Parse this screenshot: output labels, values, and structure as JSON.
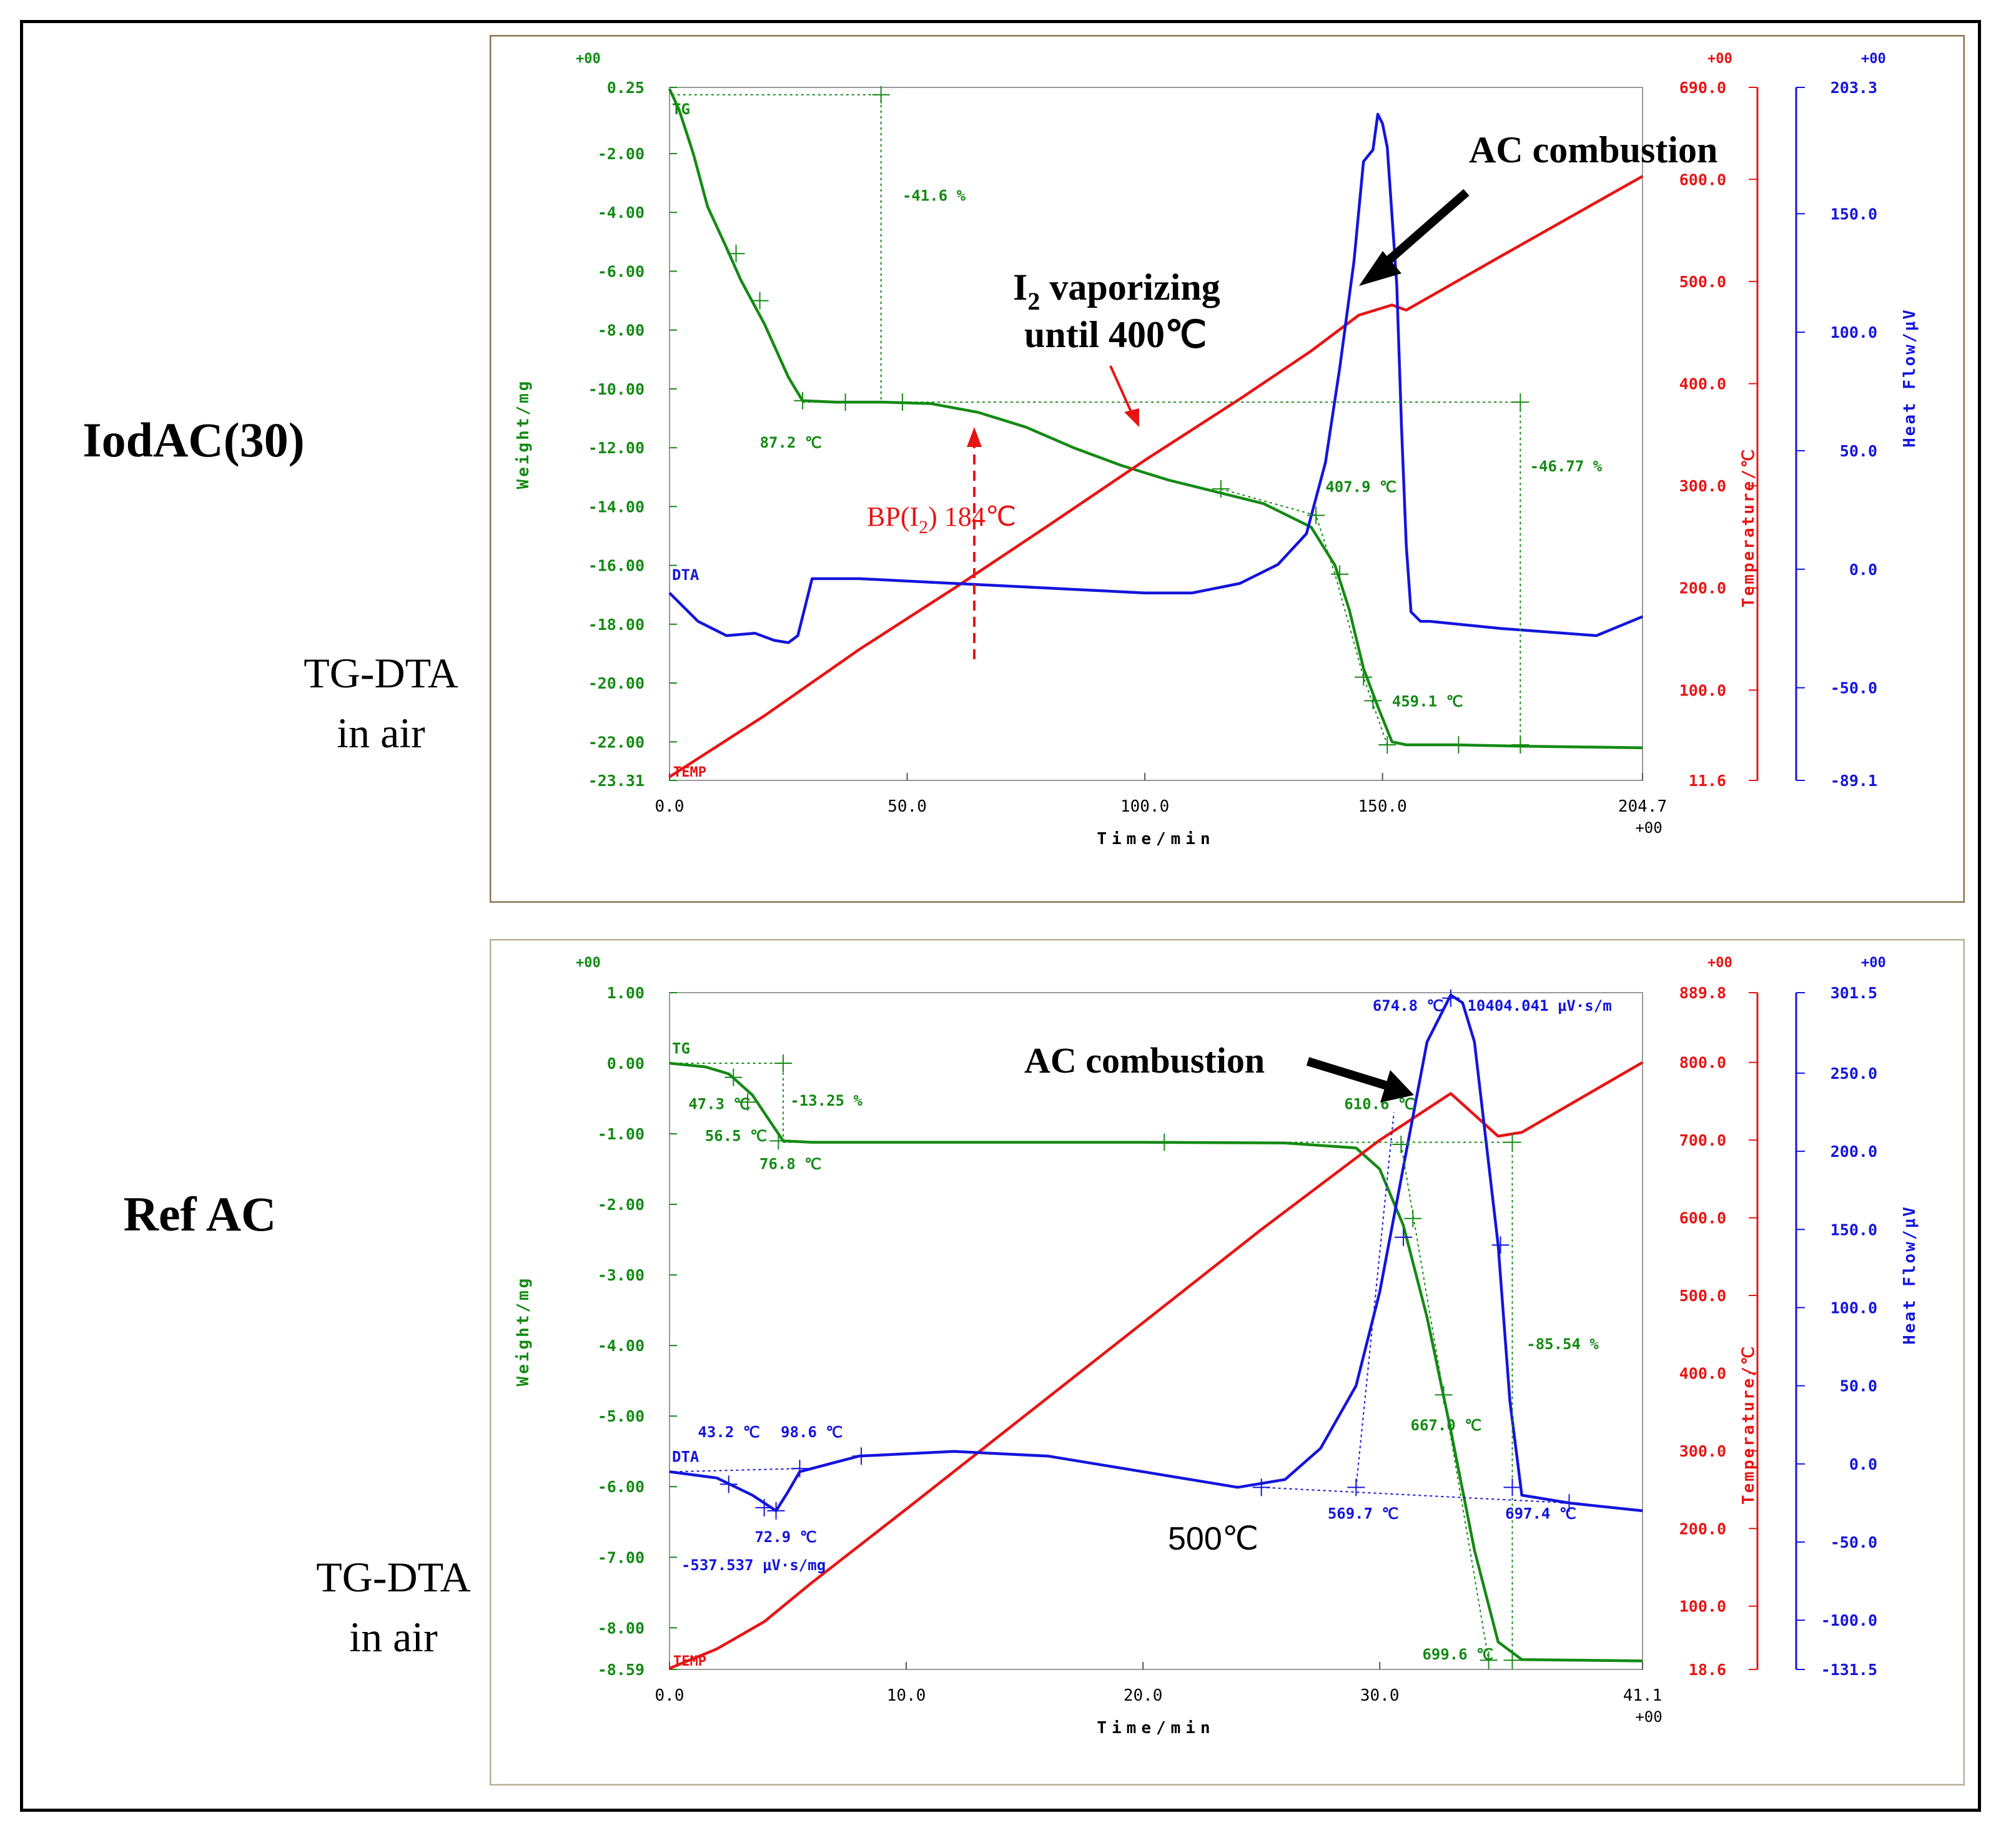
{
  "figure": {
    "top_label": "IodAC(30)",
    "bottom_label": "Ref AC",
    "method_line1": "TG-DTA",
    "method_line2": "in air",
    "colors": {
      "tg": "#148a14",
      "dta": "#1414dc",
      "temp": "#e81414",
      "frame_top": "#8a7550",
      "frame_bottom": "#b9b09a"
    }
  },
  "chart_data": [
    {
      "type": "line",
      "name": "IodAC(30)",
      "xlabel": "Time/min",
      "ylabel_left": "Weight/mg",
      "ylabel_temp": "Temperature/℃",
      "ylabel_heat": "Heat Flow/μV",
      "xlim": [
        0,
        204.7
      ],
      "ylim_weight": [
        -23.31,
        0.25
      ],
      "ylim_temp": [
        11.6,
        690.0
      ],
      "ylim_heat": [
        -89.1,
        203.3
      ],
      "x_ticks": [
        "0.0",
        "50.0",
        "100.0",
        "150.0",
        "204.7"
      ],
      "x_tick_vals": [
        0,
        50,
        100,
        150,
        204.7
      ],
      "x_exp": "+00",
      "weight_ticks": [
        "0.25",
        "-2.00",
        "-4.00",
        "-6.00",
        "-8.00",
        "-10.00",
        "-12.00",
        "-14.00",
        "-16.00",
        "-18.00",
        "-20.00",
        "-22.00",
        "-23.31"
      ],
      "weight_tick_vals": [
        0.25,
        -2,
        -4,
        -6,
        -8,
        -10,
        -12,
        -14,
        -16,
        -18,
        -20,
        -22,
        -23.31
      ],
      "weight_exp": "+00",
      "temp_ticks": [
        "690.0",
        "600.0",
        "500.0",
        "400.0",
        "300.0",
        "200.0",
        "100.0",
        "11.6"
      ],
      "temp_tick_vals": [
        690,
        600,
        500,
        400,
        300,
        200,
        100,
        11.6
      ],
      "temp_exp": "+00",
      "heat_ticks": [
        "203.3",
        "150.0",
        "100.0",
        "50.0",
        "0.0",
        "-50.0",
        "-89.1"
      ],
      "heat_tick_vals": [
        203.3,
        150,
        100,
        50,
        0,
        -50,
        -89.1
      ],
      "heat_exp": "+00",
      "series": [
        {
          "name": "TG",
          "axis": "weight",
          "color": "#148a14",
          "x": [
            0,
            2,
            5,
            8,
            12,
            15,
            20,
            25,
            28,
            35,
            45,
            55,
            65,
            75,
            85,
            95,
            105,
            115,
            125,
            135,
            140,
            143,
            146,
            149,
            152,
            155,
            165,
            180,
            204.7
          ],
          "values": [
            0.2,
            -0.5,
            -2,
            -3.8,
            -5.2,
            -6.3,
            -7.8,
            -9.6,
            -10.4,
            -10.45,
            -10.45,
            -10.5,
            -10.8,
            -11.3,
            -12,
            -12.6,
            -13.1,
            -13.5,
            -13.9,
            -14.7,
            -16,
            -17.5,
            -19.5,
            -20.8,
            -22,
            -22.1,
            -22.1,
            -22.15,
            -22.2
          ]
        },
        {
          "name": "TEMP",
          "axis": "temp",
          "color": "#e81414",
          "x": [
            0,
            20,
            40,
            60,
            80,
            100,
            120,
            135,
            145,
            152,
            155,
            175,
            204.7
          ],
          "values": [
            15,
            75,
            140,
            200,
            262,
            325,
            385,
            432,
            467,
            477,
            472,
            525,
            603
          ]
        },
        {
          "name": "DTA",
          "axis": "heat",
          "color": "#1414dc",
          "x": [
            0,
            6,
            12,
            18,
            22,
            25,
            27,
            30,
            40,
            60,
            80,
            100,
            110,
            120,
            128,
            134,
            138,
            141,
            144,
            146,
            148,
            149,
            150,
            151,
            153,
            154,
            155,
            156,
            157,
            158,
            160,
            175,
            195,
            204.7
          ],
          "values": [
            -10,
            -22,
            -28,
            -27,
            -30,
            -31,
            -28,
            -4,
            -4,
            -6,
            -8,
            -10,
            -10,
            -6,
            2,
            15,
            45,
            85,
            130,
            172,
            177,
            192,
            188,
            178,
            120,
            60,
            10,
            -18,
            -20,
            -22,
            -22,
            -25,
            -28,
            -20
          ]
        }
      ],
      "labels": {
        "tg": "TG",
        "dta": "DTA",
        "temp": "TEMP",
        "loss1": "-41.6 %",
        "loss2": "-46.77 %",
        "t1": "87.2 ℃",
        "t2": "407.9 ℃",
        "t3": "459.1 ℃",
        "combustion": "AC combustion",
        "vapor_1": "I",
        "vapor_sub": "2",
        "vapor_2": " vaporizing",
        "vapor_3": "until 400℃",
        "bp_1": "BP(I",
        "bp_sub": "2",
        "bp_2": ") 184℃"
      }
    },
    {
      "type": "line",
      "name": "Ref AC",
      "xlabel": "Time/min",
      "ylabel_left": "Weight/mg",
      "ylabel_temp": "Temperature/℃",
      "ylabel_heat": "Heat Flow/μV",
      "xlim": [
        0,
        41.1
      ],
      "ylim_weight": [
        -8.59,
        1.0
      ],
      "ylim_temp": [
        18.6,
        889.8
      ],
      "ylim_heat": [
        -131.5,
        301.5
      ],
      "x_ticks": [
        "0.0",
        "10.0",
        "20.0",
        "30.0",
        "41.1"
      ],
      "x_tick_vals": [
        0,
        10,
        20,
        30,
        41.1
      ],
      "x_exp": "+00",
      "weight_ticks": [
        "1.00",
        "0.00",
        "-1.00",
        "-2.00",
        "-3.00",
        "-4.00",
        "-5.00",
        "-6.00",
        "-7.00",
        "-8.00",
        "-8.59"
      ],
      "weight_tick_vals": [
        1,
        0,
        -1,
        -2,
        -3,
        -4,
        -5,
        -6,
        -7,
        -8,
        -8.59
      ],
      "weight_exp": "+00",
      "temp_ticks": [
        "889.8",
        "800.0",
        "700.0",
        "600.0",
        "500.0",
        "400.0",
        "300.0",
        "200.0",
        "100.0",
        "18.6"
      ],
      "temp_tick_vals": [
        889.8,
        800,
        700,
        600,
        500,
        400,
        300,
        200,
        100,
        18.6
      ],
      "temp_exp": "+00",
      "heat_ticks": [
        "301.5",
        "250.0",
        "200.0",
        "150.0",
        "100.0",
        "50.0",
        "0.0",
        "-50.0",
        "-100.0",
        "-131.5"
      ],
      "heat_tick_vals": [
        301.5,
        250,
        200,
        150,
        100,
        50,
        0,
        -50,
        -100,
        -131.5
      ],
      "heat_exp": "+00",
      "series": [
        {
          "name": "TG",
          "axis": "weight",
          "color": "#148a14",
          "x": [
            0,
            1.5,
            2.5,
            3.5,
            4.2,
            4.8,
            6,
            10,
            20,
            26,
            29,
            30,
            31,
            32,
            33,
            34,
            35,
            36,
            41.1
          ],
          "values": [
            0,
            -0.05,
            -0.15,
            -0.45,
            -0.8,
            -1.1,
            -1.12,
            -1.12,
            -1.12,
            -1.13,
            -1.2,
            -1.5,
            -2.3,
            -3.6,
            -5.2,
            -6.9,
            -8.2,
            -8.45,
            -8.47
          ]
        },
        {
          "name": "TEMP",
          "axis": "temp",
          "color": "#e81414",
          "x": [
            0,
            2,
            4,
            6,
            10,
            15,
            20,
            25,
            30,
            33,
            35,
            36,
            41.1
          ],
          "values": [
            20,
            45,
            80,
            130,
            225,
            345,
            465,
            585,
            700,
            760,
            705,
            710,
            800
          ]
        },
        {
          "name": "DTA",
          "axis": "heat",
          "color": "#1414dc",
          "x": [
            0,
            2,
            3.5,
            4.5,
            5,
            5.5,
            6,
            8,
            12,
            16,
            20,
            24,
            26,
            27.5,
            29,
            30,
            31,
            32,
            33,
            33.5,
            34,
            35,
            35.5,
            36,
            38,
            41.1
          ],
          "values": [
            -5,
            -9,
            -20,
            -30,
            -18,
            -5,
            -3,
            5,
            8,
            5,
            -5,
            -15,
            -10,
            10,
            50,
            110,
            190,
            270,
            300,
            295,
            270,
            140,
            40,
            -20,
            -25,
            -30
          ]
        }
      ],
      "labels": {
        "tg": "TG",
        "dta": "DTA",
        "temp": "TEMP",
        "t1": "47.3 ℃",
        "t2": "56.5 ℃",
        "t3": "76.8 ℃",
        "loss1": "-13.25 %",
        "loss2": "-85.54 %",
        "t4": "610.6 ℃",
        "t5": "667.0 ℃",
        "t6": "699.6 ℃",
        "peak_t": "674.8 ℃",
        "peak_area": "10404.041 μV·s/m",
        "dta1": "43.2 ℃",
        "dta2": "98.6 ℃",
        "dta3": "72.9 ℃",
        "dta_area": "-537.537 μV·s/mg",
        "dta4": "569.7 ℃",
        "dta5": "697.4 ℃",
        "combustion": "AC combustion",
        "t500": "500℃"
      }
    }
  ]
}
